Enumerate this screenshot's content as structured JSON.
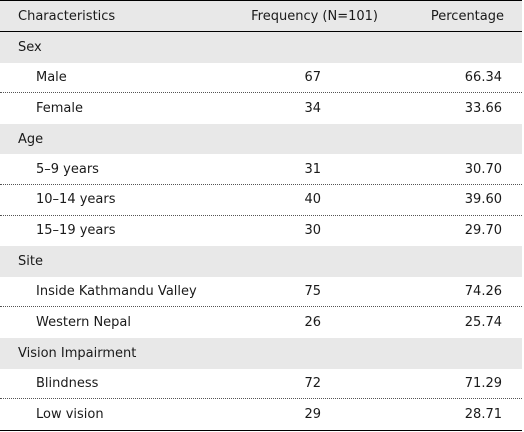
{
  "table": {
    "headers": {
      "characteristics": "Characteristics",
      "frequency": "Frequency (N=101)",
      "percentage": "Percentage"
    },
    "groups": [
      {
        "label": "Sex",
        "rows": [
          {
            "label": "Male",
            "frequency": "67",
            "percentage": "66.34"
          },
          {
            "label": "Female",
            "frequency": "34",
            "percentage": "33.66"
          }
        ]
      },
      {
        "label": "Age",
        "rows": [
          {
            "label": "5–9 years",
            "frequency": "31",
            "percentage": "30.70"
          },
          {
            "label": "10–14 years",
            "frequency": "40",
            "percentage": "39.60"
          },
          {
            "label": "15–19 years",
            "frequency": "30",
            "percentage": "29.70"
          }
        ]
      },
      {
        "label": "Site",
        "rows": [
          {
            "label": "Inside Kathmandu Valley",
            "frequency": "75",
            "percentage": "74.26"
          },
          {
            "label": "Western Nepal",
            "frequency": "26",
            "percentage": "25.74"
          }
        ]
      },
      {
        "label": "Vision Impairment",
        "rows": [
          {
            "label": "Blindness",
            "frequency": "72",
            "percentage": "71.29"
          },
          {
            "label": "Low vision",
            "frequency": "29",
            "percentage": "28.71"
          }
        ]
      }
    ]
  }
}
